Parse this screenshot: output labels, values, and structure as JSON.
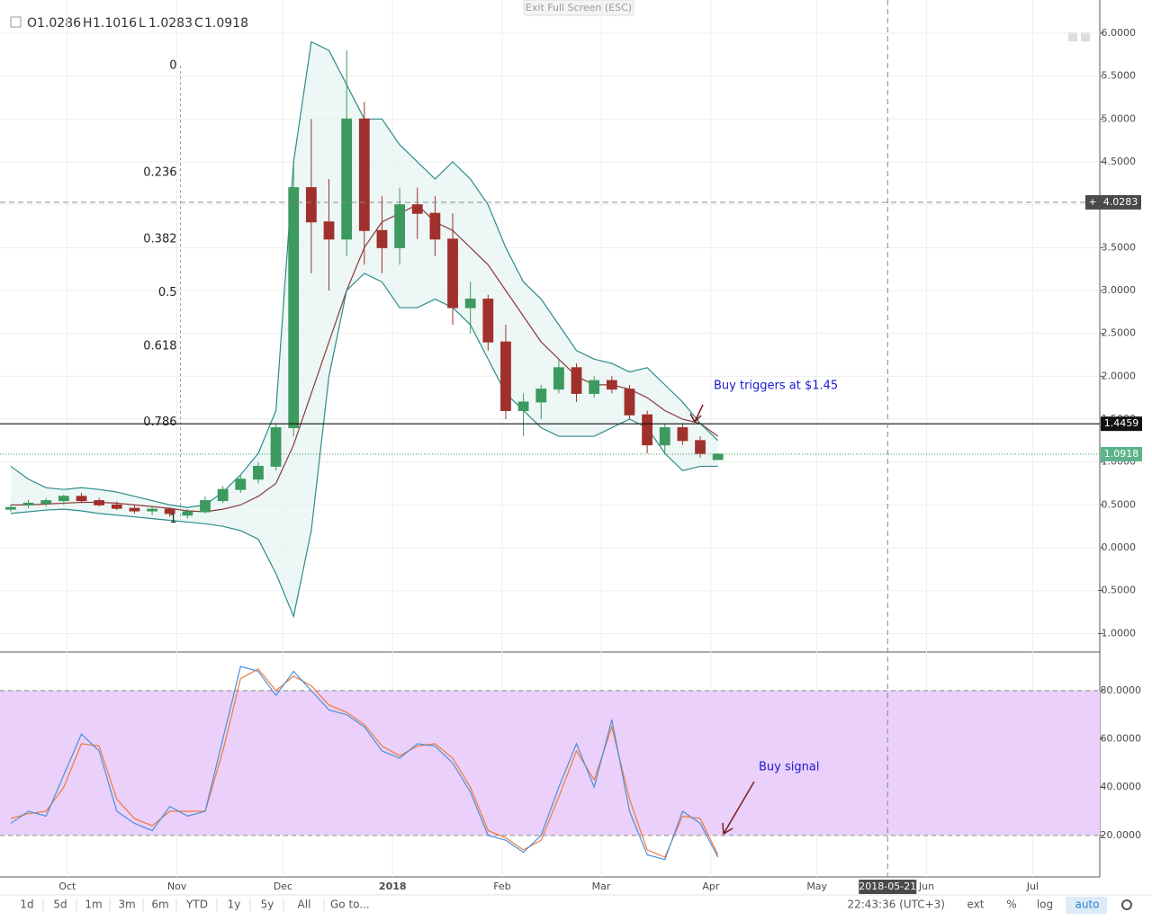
{
  "top_bar": {
    "exit_fullscreen": "Exit Full Screen (ESC)"
  },
  "chart_data": [
    {
      "type": "candlestick",
      "ohlc_labels": [
        "O",
        "H",
        "L",
        "C"
      ],
      "ohlc_values": [
        1.0286,
        1.1016,
        1.0283,
        1.0918
      ],
      "x": [
        "2017-09-15",
        "2017-09-20",
        "2017-09-25",
        "2017-09-30",
        "2017-10-05",
        "2017-10-10",
        "2017-10-15",
        "2017-10-20",
        "2017-10-25",
        "2017-10-30",
        "2017-11-04",
        "2017-11-09",
        "2017-11-14",
        "2017-11-19",
        "2017-11-24",
        "2017-11-29",
        "2017-12-04",
        "2017-12-09",
        "2017-12-14",
        "2017-12-19",
        "2017-12-24",
        "2017-12-29",
        "2018-01-03",
        "2018-01-08",
        "2018-01-13",
        "2018-01-18",
        "2018-01-23",
        "2018-01-28",
        "2018-02-02",
        "2018-02-07",
        "2018-02-12",
        "2018-02-17",
        "2018-02-22",
        "2018-02-27",
        "2018-03-04",
        "2018-03-09",
        "2018-03-14",
        "2018-03-19",
        "2018-03-24",
        "2018-03-29",
        "2018-04-03"
      ],
      "open": [
        0.45,
        0.5,
        0.52,
        0.55,
        0.6,
        0.55,
        0.5,
        0.46,
        0.43,
        0.45,
        0.38,
        0.42,
        0.55,
        0.68,
        0.8,
        0.95,
        1.4,
        4.2,
        3.8,
        3.6,
        5.0,
        3.7,
        3.5,
        4.0,
        3.9,
        3.6,
        2.8,
        2.9,
        2.4,
        1.6,
        1.7,
        1.85,
        2.1,
        1.8,
        1.95,
        1.85,
        1.55,
        1.2,
        1.4,
        1.25,
        1.0286
      ],
      "high": [
        0.5,
        0.56,
        0.58,
        0.62,
        0.64,
        0.58,
        0.54,
        0.5,
        0.48,
        0.47,
        0.45,
        0.6,
        0.72,
        0.85,
        1.0,
        1.45,
        4.5,
        5.0,
        4.3,
        5.8,
        5.2,
        4.1,
        4.2,
        4.2,
        4.1,
        3.9,
        3.1,
        2.95,
        2.6,
        1.8,
        1.9,
        2.2,
        2.15,
        2.0,
        2.0,
        1.9,
        1.6,
        1.45,
        1.45,
        1.3,
        1.1016
      ],
      "low": [
        0.42,
        0.46,
        0.48,
        0.5,
        0.52,
        0.48,
        0.44,
        0.4,
        0.38,
        0.36,
        0.34,
        0.4,
        0.52,
        0.64,
        0.75,
        0.9,
        1.3,
        3.2,
        3.0,
        3.4,
        3.3,
        3.2,
        3.3,
        3.6,
        3.4,
        2.6,
        2.5,
        2.3,
        1.5,
        1.3,
        1.5,
        1.8,
        1.7,
        1.75,
        1.8,
        1.5,
        1.1,
        1.1,
        1.2,
        1.05,
        1.0283
      ],
      "close": [
        0.47,
        0.52,
        0.55,
        0.6,
        0.55,
        0.5,
        0.46,
        0.43,
        0.45,
        0.4,
        0.42,
        0.55,
        0.68,
        0.8,
        0.95,
        1.4,
        4.2,
        3.8,
        3.6,
        5.0,
        3.7,
        3.5,
        4.0,
        3.9,
        3.6,
        2.8,
        2.9,
        2.4,
        1.6,
        1.7,
        1.85,
        2.1,
        1.8,
        1.95,
        1.85,
        1.55,
        1.2,
        1.4,
        1.25,
        1.1,
        1.0918
      ],
      "up_color": "#3c9a5f",
      "down_color": "#a0302c",
      "overlays": [
        {
          "color": "#8b3a3a",
          "values": [
            0.5,
            0.5,
            0.51,
            0.52,
            0.53,
            0.53,
            0.52,
            0.5,
            0.48,
            0.46,
            0.43,
            0.42,
            0.45,
            0.5,
            0.6,
            0.75,
            1.2,
            1.8,
            2.4,
            3.0,
            3.5,
            3.8,
            3.9,
            4.0,
            3.8,
            3.7,
            3.5,
            3.3,
            3.0,
            2.7,
            2.4,
            2.2,
            2.0,
            1.9,
            1.9,
            1.85,
            1.75,
            1.6,
            1.5,
            1.45,
            1.3
          ]
        },
        {
          "color": "#2e8b8b",
          "values": [
            0.95,
            0.8,
            0.7,
            0.68,
            0.7,
            0.68,
            0.65,
            0.6,
            0.55,
            0.5,
            0.47,
            0.5,
            0.65,
            0.85,
            1.1,
            1.6,
            4.5,
            5.9,
            5.8,
            5.4,
            5.0,
            5.0,
            4.7,
            4.5,
            4.3,
            4.5,
            4.3,
            4.0,
            3.5,
            3.1,
            2.9,
            2.6,
            2.3,
            2.2,
            2.15,
            2.05,
            2.1,
            1.9,
            1.7,
            1.45,
            1.25
          ]
        },
        {
          "color": "#2e8b8b",
          "values": [
            0.4,
            0.42,
            0.44,
            0.45,
            0.43,
            0.4,
            0.38,
            0.36,
            0.34,
            0.32,
            0.3,
            0.28,
            0.25,
            0.2,
            0.1,
            -0.3,
            -0.8,
            0.2,
            2.0,
            3.0,
            3.2,
            3.1,
            2.8,
            2.8,
            2.9,
            2.8,
            2.6,
            2.2,
            1.8,
            1.6,
            1.4,
            1.3,
            1.3,
            1.3,
            1.4,
            1.5,
            1.4,
            1.1,
            0.9,
            0.95,
            0.95
          ]
        }
      ],
      "band_fill": "#e6f3f1",
      "xlim": [
        "2017-09-14",
        "2018-07-20"
      ],
      "xticks": [
        {
          "value": "2017-10-01",
          "label": "Oct"
        },
        {
          "value": "2017-11-01",
          "label": "Nov"
        },
        {
          "value": "2017-12-01",
          "label": "Dec"
        },
        {
          "value": "2018-01-01",
          "label": "2018"
        },
        {
          "value": "2018-02-01",
          "label": "Feb"
        },
        {
          "value": "2018-03-01",
          "label": "Mar"
        },
        {
          "value": "2018-04-01",
          "label": "Apr"
        },
        {
          "value": "2018-05-01",
          "label": "May"
        },
        {
          "value": "2018-06-01",
          "label": "Jun"
        },
        {
          "value": "2018-07-01",
          "label": "Jul"
        }
      ],
      "ylim": [
        -1.164,
        6.283
      ],
      "yticks": [
        {
          "value": -1,
          "label": "-1.0000"
        },
        {
          "value": -0.5,
          "label": "-0.5000"
        },
        {
          "value": 0,
          "label": "0.0000"
        },
        {
          "value": 0.5,
          "label": "0.5000"
        },
        {
          "value": 1,
          "label": "1.0000"
        },
        {
          "value": 1.5,
          "label": "1.5000"
        },
        {
          "value": 2,
          "label": "2.0000"
        },
        {
          "value": 2.5,
          "label": "2.5000"
        },
        {
          "value": 3,
          "label": "3.0000"
        },
        {
          "value": 3.5,
          "label": "3.5000"
        },
        {
          "value": 4,
          "label": "4.0000"
        },
        {
          "value": 4.5,
          "label": "4.5000"
        },
        {
          "value": 5,
          "label": "5.0000"
        },
        {
          "value": 5.5,
          "label": "5.5000"
        },
        {
          "value": 6,
          "label": "6.0000"
        }
      ],
      "grid": true,
      "hline": 1.4459,
      "crosshair": {
        "price": 4.0283,
        "date": "2018-05-21"
      },
      "fibonacci": {
        "ratios": [
          0,
          0.236,
          0.382,
          0.5,
          0.618,
          0.786,
          1
        ],
        "high": 5.62,
        "low": 0.33,
        "anchor_date": "2017-11-02"
      },
      "annotation": "Buy triggers at $1.45"
    },
    {
      "type": "line",
      "series": [
        {
          "color": "#4a90d9",
          "values": [
            25,
            30,
            28,
            45,
            62,
            55,
            30,
            25,
            22,
            32,
            28,
            30,
            60,
            90,
            88,
            78,
            88,
            80,
            72,
            70,
            65,
            55,
            52,
            58,
            57,
            50,
            38,
            20,
            18,
            13,
            20,
            40,
            58,
            40,
            68,
            30,
            12,
            10,
            30,
            25,
            11
          ]
        },
        {
          "color": "#f07a3a",
          "values": [
            27,
            29,
            30,
            40,
            58,
            57,
            35,
            27,
            24,
            30,
            30,
            30,
            55,
            85,
            89,
            80,
            86,
            82,
            74,
            71,
            66,
            57,
            53,
            57,
            58,
            52,
            40,
            22,
            19,
            14,
            18,
            36,
            55,
            43,
            65,
            35,
            14,
            11,
            28,
            27,
            12
          ]
        }
      ],
      "ylim": [
        2.8,
        95.6
      ],
      "yticks": [
        {
          "value": 20,
          "label": "20.0000"
        },
        {
          "value": 40,
          "label": "40.0000"
        },
        {
          "value": 60,
          "label": "60.0000"
        },
        {
          "value": 80,
          "label": "80.0000"
        }
      ],
      "band": [
        20,
        80
      ],
      "band_color": "#ead0fa",
      "grid": true,
      "annotation": "Buy signal"
    }
  ],
  "bottom_bar": {
    "ranges": [
      "1d",
      "5d",
      "1m",
      "3m",
      "6m",
      "YTD",
      "1y",
      "5y",
      "All"
    ],
    "goto": "Go to...",
    "clock": "22:43:36 (UTC+3)",
    "options": [
      "ext",
      "%",
      "log",
      "auto"
    ]
  }
}
